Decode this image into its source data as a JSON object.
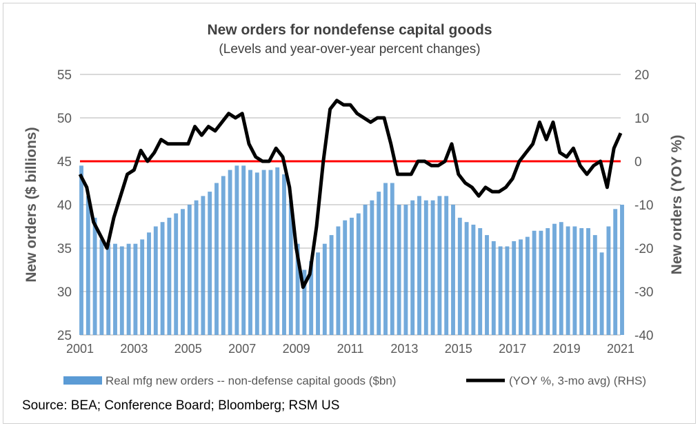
{
  "chart_data": {
    "type": "bar+line",
    "title": "New orders for nondefense capital goods",
    "subtitle": "(Levels and year-over-year percent changes)",
    "ylabel": "New orders ($ billions)",
    "y2label": "New orders (YOY %)",
    "ylim": [
      25,
      55
    ],
    "yticks": [
      25,
      30,
      35,
      40,
      45,
      50,
      55
    ],
    "y2lim": [
      -40,
      20
    ],
    "y2ticks": [
      -40,
      -30,
      -20,
      -10,
      0,
      10,
      20
    ],
    "xticks": [
      "2001",
      "2003",
      "2005",
      "2007",
      "2009",
      "2011",
      "2013",
      "2015",
      "2017",
      "2019",
      "2021"
    ],
    "grid": true,
    "legend_placement": "bottom",
    "reference_line": {
      "axis": "right",
      "value": 0,
      "color": "#ff0000"
    },
    "x": [
      "2001-01",
      "2001-04",
      "2001-07",
      "2001-10",
      "2002-01",
      "2002-04",
      "2002-07",
      "2002-10",
      "2003-01",
      "2003-04",
      "2003-07",
      "2003-10",
      "2004-01",
      "2004-04",
      "2004-07",
      "2004-10",
      "2005-01",
      "2005-04",
      "2005-07",
      "2005-10",
      "2006-01",
      "2006-04",
      "2006-07",
      "2006-10",
      "2007-01",
      "2007-04",
      "2007-07",
      "2007-10",
      "2008-01",
      "2008-04",
      "2008-07",
      "2008-10",
      "2009-01",
      "2009-04",
      "2009-07",
      "2009-10",
      "2010-01",
      "2010-04",
      "2010-07",
      "2010-10",
      "2011-01",
      "2011-04",
      "2011-07",
      "2011-10",
      "2012-01",
      "2012-04",
      "2012-07",
      "2012-10",
      "2013-01",
      "2013-04",
      "2013-07",
      "2013-10",
      "2014-01",
      "2014-04",
      "2014-07",
      "2014-10",
      "2015-01",
      "2015-04",
      "2015-07",
      "2015-10",
      "2016-01",
      "2016-04",
      "2016-07",
      "2016-10",
      "2017-01",
      "2017-04",
      "2017-07",
      "2017-10",
      "2018-01",
      "2018-04",
      "2018-07",
      "2018-10",
      "2019-01",
      "2019-04",
      "2019-07",
      "2019-10",
      "2020-01",
      "2020-04",
      "2020-07",
      "2020-10",
      "2021-01"
    ],
    "series": [
      {
        "name": "Real mfg new orders -- non-defense capital goods ($bn)",
        "type": "bar",
        "axis": "left",
        "color": "#5b9bd5",
        "values": [
          44.5,
          41,
          38.5,
          36,
          35.5,
          35.5,
          35.2,
          35.5,
          35.5,
          36,
          36.8,
          37.5,
          38,
          38.5,
          39,
          39.5,
          40,
          40.5,
          41,
          41.5,
          42.5,
          43.3,
          44,
          44.5,
          44.5,
          44,
          43.7,
          44,
          44,
          44.3,
          43.5,
          40.5,
          35.5,
          32.5,
          33.5,
          34.5,
          35.5,
          36.5,
          37.5,
          38.2,
          38.5,
          39,
          40,
          40.5,
          41.5,
          42.5,
          42.5,
          40,
          40,
          40.5,
          41,
          40.5,
          40.5,
          41,
          41,
          40,
          38.5,
          38,
          37.7,
          37.3,
          36.5,
          35.8,
          35.2,
          35.2,
          35.8,
          36,
          36.3,
          37,
          37,
          37.3,
          37.8,
          38,
          37.5,
          37.5,
          37.3,
          37.3,
          36.5,
          34.5,
          37.5,
          39.5,
          40
        ]
      },
      {
        "name": "(YOY %, 3-mo avg) (RHS)",
        "type": "line",
        "axis": "right",
        "color": "#000000",
        "values": [
          -3,
          -6,
          -14,
          -17,
          -20,
          -13,
          -8,
          -3,
          -2,
          2.5,
          0,
          2,
          5,
          4,
          4,
          4,
          4,
          8,
          6,
          8,
          7,
          9,
          11,
          10,
          11,
          4,
          1,
          0,
          0,
          3,
          1,
          -6,
          -20,
          -29,
          -26,
          -15,
          0,
          12,
          14,
          13,
          13,
          11,
          10,
          9,
          10,
          10,
          4,
          -3,
          -3,
          -3,
          0,
          0,
          -1,
          -1,
          0,
          4,
          -3,
          -5,
          -6,
          -8,
          -6,
          -7,
          -7,
          -6,
          -4,
          0,
          2,
          4,
          9,
          5,
          9,
          2,
          1,
          3,
          -1,
          -3,
          -1,
          0,
          -6,
          3,
          6.5
        ]
      }
    ]
  },
  "source": "Source: BEA; Conference Board;  Bloomberg; RSM US"
}
